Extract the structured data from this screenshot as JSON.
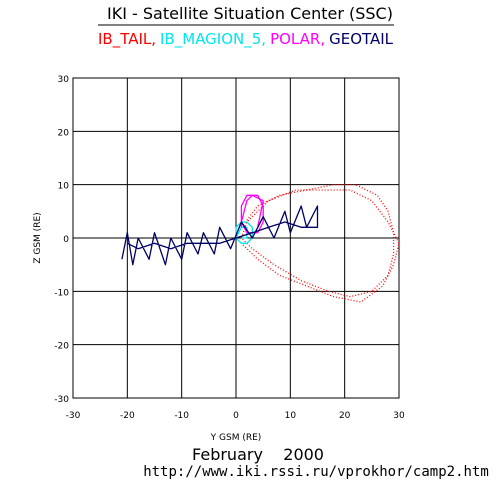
{
  "chart_data": {
    "type": "line",
    "title": "IKI - Satellite Situation Center (SSC)",
    "xlabel": "Y GSM (RE)",
    "ylabel": "Z GSM (RE)",
    "xlim": [
      -30,
      30
    ],
    "ylim": [
      -30,
      30
    ],
    "xticks": [
      -30,
      -20,
      -10,
      0,
      10,
      20,
      30
    ],
    "yticks": [
      -30,
      -20,
      -10,
      0,
      10,
      20,
      30
    ],
    "grid": true,
    "date_label": "February    2000",
    "url": "http://www.iki.rssi.ru/vprokhor/camp2.htm",
    "series": [
      {
        "name": "IB_TAIL,",
        "color": "#ff0000",
        "line_style": "dotted",
        "x": [
          1,
          4,
          8,
          13,
          18,
          22,
          26,
          28,
          29,
          29,
          28,
          25,
          21,
          17,
          12,
          7,
          3,
          1,
          2,
          6,
          11,
          16,
          21,
          25,
          28,
          30,
          29,
          27,
          23,
          18,
          13,
          8,
          4,
          1
        ],
        "values": [
          2,
          6,
          8,
          9,
          10,
          10,
          8,
          5,
          1,
          -3,
          -7,
          -10,
          -11,
          -10,
          -8,
          -5,
          -2,
          0,
          3,
          7,
          9,
          9,
          9,
          7,
          3,
          -1,
          -5,
          -9,
          -12,
          -11,
          -9,
          -7,
          -4,
          -1
        ]
      },
      {
        "name": "IB_MAGION_5,",
        "color": "#00e5ee",
        "line_style": "solid",
        "x": [
          0,
          0,
          1,
          2,
          3,
          3,
          2,
          1,
          0,
          1,
          2,
          2,
          1
        ],
        "values": [
          0,
          2,
          3,
          3,
          2,
          0,
          -1,
          -1,
          0,
          2,
          2,
          0,
          0
        ]
      },
      {
        "name": "POLAR,",
        "color": "#ff00ff",
        "line_style": "solid",
        "x": [
          1,
          1,
          2,
          4,
          5,
          5,
          4,
          2,
          1,
          2,
          3,
          5,
          4
        ],
        "values": [
          2,
          6,
          8,
          8,
          6,
          3,
          1,
          1,
          3,
          7,
          8,
          7,
          2
        ]
      },
      {
        "name": "GEOTAIL",
        "color": "#000066",
        "line_style": "solid",
        "x": [
          -21,
          -20,
          -19,
          -18,
          -16,
          -15,
          -13,
          -12,
          -10,
          -9,
          -7,
          -6,
          -4,
          -3,
          -1,
          1,
          3,
          5,
          7,
          9,
          10,
          12,
          13,
          15,
          15,
          12,
          9,
          6,
          3,
          0,
          -3,
          -6,
          -9,
          -12,
          -15,
          -18,
          -20
        ],
        "values": [
          -4,
          1,
          -5,
          0,
          -4,
          1,
          -5,
          0,
          -4,
          1,
          -3,
          1,
          -3,
          2,
          -2,
          3,
          0,
          4,
          0,
          5,
          1,
          6,
          2,
          6,
          2,
          2,
          3,
          2,
          1,
          0,
          -1,
          -1,
          -1,
          -2,
          -1,
          -2,
          -1
        ]
      }
    ]
  }
}
